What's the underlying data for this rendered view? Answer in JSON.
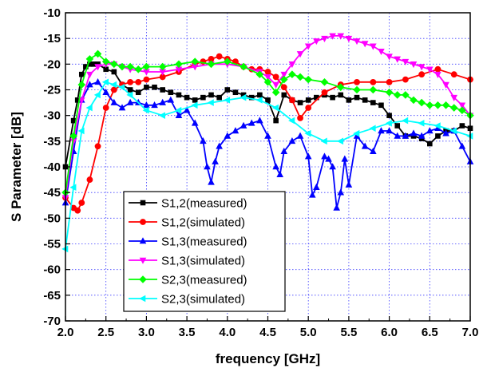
{
  "chart_data": {
    "type": "line",
    "xlabel": "frequency [GHz]",
    "ylabel": "S Parameter [dB]",
    "xlim": [
      2.0,
      7.0
    ],
    "ylim": [
      -70,
      -10
    ],
    "xticks": [
      "2.0",
      "2.5",
      "3.0",
      "3.5",
      "4.0",
      "4.5",
      "5.0",
      "5.5",
      "6.0",
      "6.5",
      "7.0"
    ],
    "yticks": [
      "-10",
      "-15",
      "-20",
      "-25",
      "-30",
      "-35",
      "-40",
      "-45",
      "-50",
      "-55",
      "-60",
      "-65",
      "-70"
    ],
    "grid": "on (blue dotted)",
    "legend_position": "bottom-left, inside plot",
    "series": [
      {
        "name": "S1,2(measured)",
        "color": "#000000",
        "marker": "square",
        "x": [
          2.0,
          2.1,
          2.15,
          2.2,
          2.25,
          2.3,
          2.35,
          2.4,
          2.5,
          2.6,
          2.7,
          2.8,
          2.9,
          3.0,
          3.1,
          3.2,
          3.3,
          3.4,
          3.5,
          3.6,
          3.7,
          3.8,
          3.9,
          4.0,
          4.1,
          4.2,
          4.3,
          4.4,
          4.5,
          4.6,
          4.7,
          4.8,
          4.9,
          5.0,
          5.1,
          5.2,
          5.3,
          5.4,
          5.5,
          5.6,
          5.7,
          5.8,
          5.9,
          6.0,
          6.1,
          6.2,
          6.3,
          6.4,
          6.5,
          6.6,
          6.7,
          6.8,
          6.9,
          7.0
        ],
        "y": [
          -40,
          -31,
          -27,
          -22,
          -20.5,
          -20,
          -20,
          -20,
          -21,
          -21.5,
          -24,
          -25,
          -25.5,
          -24.5,
          -24.5,
          -25,
          -25.5,
          -26,
          -26.5,
          -27,
          -26.5,
          -26,
          -26.5,
          -25,
          -25.5,
          -26,
          -26.5,
          -26,
          -27,
          -31,
          -26,
          -27,
          -27.5,
          -27,
          -26.5,
          -26,
          -26.5,
          -26,
          -27,
          -26.5,
          -27,
          -27.5,
          -28,
          -30,
          -32,
          -34,
          -34,
          -34.5,
          -35.5,
          -34,
          -33,
          -33,
          -32,
          -32.5
        ]
      },
      {
        "name": "S1,2(simulated)",
        "color": "#ff0000",
        "marker": "circle",
        "x": [
          2.0,
          2.1,
          2.15,
          2.2,
          2.3,
          2.4,
          2.5,
          2.6,
          2.7,
          2.8,
          2.9,
          3.0,
          3.2,
          3.4,
          3.6,
          3.7,
          3.8,
          3.9,
          4.0,
          4.1,
          4.2,
          4.3,
          4.4,
          4.5,
          4.6,
          4.7,
          4.8,
          4.9,
          5.0,
          5.2,
          5.4,
          5.6,
          5.8,
          6.0,
          6.2,
          6.4,
          6.6,
          6.8,
          7.0
        ],
        "y": [
          -46,
          -48,
          -48.5,
          -47,
          -42.5,
          -36,
          -28.5,
          -25,
          -24,
          -23.5,
          -23.5,
          -23,
          -22.5,
          -21.5,
          -20,
          -19.5,
          -19,
          -18.5,
          -19,
          -19.5,
          -20.5,
          -21,
          -21,
          -21.5,
          -22.5,
          -24.5,
          -27,
          -30.5,
          -28.5,
          -25.5,
          -24,
          -23.5,
          -23.5,
          -23.5,
          -23,
          -22,
          -21,
          -22,
          -23
        ]
      },
      {
        "name": "S1,3(measured)",
        "color": "#0000ff",
        "marker": "triangle-up",
        "x": [
          2.0,
          2.1,
          2.2,
          2.3,
          2.4,
          2.5,
          2.6,
          2.7,
          2.8,
          2.9,
          3.0,
          3.1,
          3.2,
          3.3,
          3.4,
          3.5,
          3.6,
          3.7,
          3.75,
          3.8,
          3.85,
          3.9,
          4.0,
          4.1,
          4.2,
          4.3,
          4.4,
          4.5,
          4.6,
          4.65,
          4.7,
          4.8,
          4.9,
          5.0,
          5.05,
          5.1,
          5.2,
          5.25,
          5.3,
          5.35,
          5.4,
          5.45,
          5.5,
          5.6,
          5.7,
          5.8,
          5.9,
          6.0,
          6.1,
          6.2,
          6.3,
          6.4,
          6.5,
          6.6,
          6.7,
          6.8,
          6.9,
          7.0
        ],
        "y": [
          -47,
          -37,
          -27,
          -24,
          -23.5,
          -25.5,
          -27.5,
          -28.5,
          -27.5,
          -27.5,
          -28,
          -28,
          -27.5,
          -27,
          -30,
          -29,
          -31.5,
          -35,
          -40,
          -43,
          -39,
          -36,
          -34,
          -33,
          -32,
          -31.5,
          -31,
          -34,
          -40,
          -41.5,
          -37,
          -35,
          -34,
          -38,
          -45.5,
          -44,
          -38,
          -38.5,
          -40,
          -48,
          -45,
          -38.5,
          -43.5,
          -34,
          -36,
          -37,
          -33,
          -33,
          -34,
          -34,
          -33.5,
          -34,
          -33,
          -32.5,
          -33.5,
          -33,
          -36,
          -39
        ]
      },
      {
        "name": "S1,3(simulated)",
        "color": "#ff00ff",
        "marker": "triangle-down",
        "x": [
          2.0,
          2.1,
          2.2,
          2.3,
          2.4,
          2.5,
          2.6,
          2.7,
          2.8,
          3.0,
          3.2,
          3.4,
          3.6,
          3.8,
          4.0,
          4.2,
          4.4,
          4.5,
          4.6,
          4.7,
          4.8,
          4.9,
          5.0,
          5.1,
          5.2,
          5.3,
          5.4,
          5.5,
          5.6,
          5.7,
          5.8,
          5.9,
          6.0,
          6.1,
          6.2,
          6.3,
          6.4,
          6.5,
          6.6,
          6.7,
          6.8,
          6.9,
          7.0
        ],
        "y": [
          -46,
          -35,
          -27,
          -22,
          -20.5,
          -20,
          -20,
          -20.5,
          -21,
          -21.5,
          -21.5,
          -21,
          -20.5,
          -20,
          -20,
          -20.5,
          -21.5,
          -22.5,
          -24,
          -22,
          -20,
          -18,
          -16.5,
          -15.5,
          -15,
          -14.5,
          -14.5,
          -15,
          -15.5,
          -16,
          -16.5,
          -17.5,
          -18.5,
          -19,
          -19.5,
          -20,
          -20.5,
          -21,
          -22,
          -24,
          -26.5,
          -28,
          -30
        ]
      },
      {
        "name": "S2,3(measured)",
        "color": "#00ff00",
        "marker": "diamond",
        "x": [
          2.0,
          2.1,
          2.2,
          2.3,
          2.4,
          2.5,
          2.6,
          2.7,
          2.8,
          2.9,
          3.0,
          3.2,
          3.4,
          3.6,
          3.8,
          4.0,
          4.2,
          4.4,
          4.5,
          4.6,
          4.7,
          4.8,
          4.9,
          5.0,
          5.2,
          5.4,
          5.6,
          5.8,
          6.0,
          6.1,
          6.2,
          6.3,
          6.4,
          6.5,
          6.6,
          6.7,
          6.8,
          6.9,
          7.0
        ],
        "y": [
          -45,
          -34,
          -24,
          -19,
          -18,
          -19.5,
          -20,
          -20.5,
          -20.5,
          -21,
          -20.5,
          -20.5,
          -20,
          -19.5,
          -20,
          -19.5,
          -20.5,
          -22,
          -23.5,
          -25.5,
          -23,
          -22,
          -22.5,
          -23,
          -23.5,
          -24.5,
          -25,
          -25,
          -25.5,
          -26,
          -26,
          -27,
          -27.5,
          -28,
          -28,
          -28,
          -28.5,
          -29,
          -30
        ]
      },
      {
        "name": "S2,3(simulated)",
        "color": "#00ffff",
        "marker": "triangle-left",
        "x": [
          2.0,
          2.1,
          2.2,
          2.3,
          2.4,
          2.5,
          2.6,
          2.7,
          2.8,
          3.0,
          3.2,
          3.4,
          3.6,
          3.8,
          4.0,
          4.2,
          4.4,
          4.6,
          4.8,
          5.0,
          5.2,
          5.4,
          5.6,
          5.8,
          6.0,
          6.2,
          6.4,
          6.6,
          6.8,
          7.0
        ],
        "y": [
          -56,
          -44,
          -33,
          -28.5,
          -26,
          -23.5,
          -24,
          -24.5,
          -26,
          -29,
          -30,
          -29,
          -28,
          -27.5,
          -27,
          -26.5,
          -27,
          -28.5,
          -31,
          -33.5,
          -35,
          -35,
          -33.5,
          -32.5,
          -31.5,
          -31,
          -31.5,
          -32,
          -33,
          -34
        ]
      }
    ]
  }
}
